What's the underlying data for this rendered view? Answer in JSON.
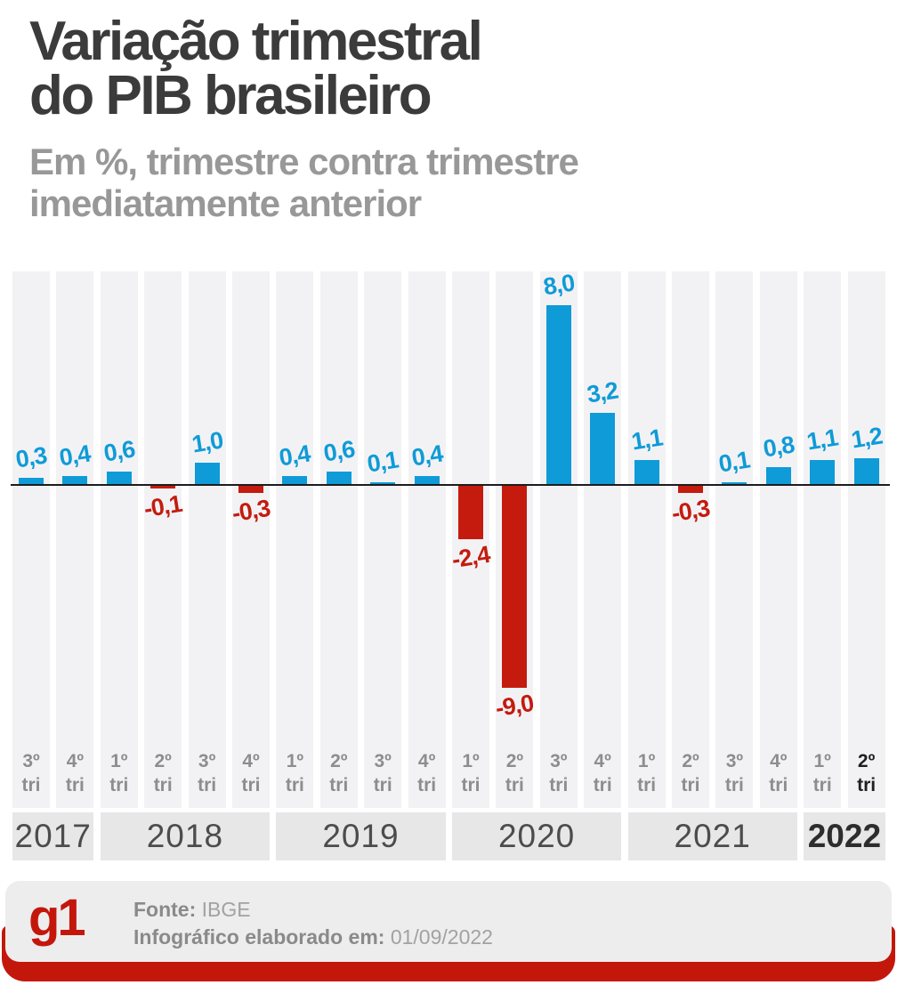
{
  "title": "Variação trimestral\ndo PIB brasileiro",
  "subtitle": "Em %, trimestre contra trimestre\nimediatamente anterior",
  "footer": {
    "logo": "g1",
    "source_label": "Fonte:",
    "source_value": "IBGE",
    "date_label": "Infográfico elaborado em:",
    "date_value": "01/09/2022"
  },
  "colors": {
    "positive_bar": "#0f9bd7",
    "negative_bar": "#c41b0e",
    "title_text": "#3b3b3b",
    "subtitle_text": "#989898",
    "stripe_bg": "#f2f2f5",
    "year_band_bg": "#e7e7e8",
    "quarter_label": "#8d8d8d",
    "current_label": "#1f1f1f",
    "footer_panel_bg": "#ededed",
    "brand_red": "#c4170c",
    "baseline": "#1c1c1c"
  },
  "chart_data": {
    "type": "bar",
    "title": "Variação trimestral do PIB brasileiro",
    "subtitle": "Em %, trimestre contra trimestre imediatamente anterior",
    "unit": "%",
    "ylim": [
      -9.0,
      8.0
    ],
    "grid": false,
    "bars": [
      {
        "quarter": "3º tri",
        "year": "2017",
        "value": 0.3,
        "display": "0,3"
      },
      {
        "quarter": "4º tri",
        "year": "2017",
        "value": 0.4,
        "display": "0,4"
      },
      {
        "quarter": "1º tri",
        "year": "2018",
        "value": 0.6,
        "display": "0,6"
      },
      {
        "quarter": "2º tri",
        "year": "2018",
        "value": -0.1,
        "display": "-0,1"
      },
      {
        "quarter": "3º tri",
        "year": "2018",
        "value": 1.0,
        "display": "1,0"
      },
      {
        "quarter": "4º tri",
        "year": "2018",
        "value": -0.3,
        "display": "-0,3"
      },
      {
        "quarter": "1º tri",
        "year": "2019",
        "value": 0.4,
        "display": "0,4"
      },
      {
        "quarter": "2º tri",
        "year": "2019",
        "value": 0.6,
        "display": "0,6"
      },
      {
        "quarter": "3º tri",
        "year": "2019",
        "value": 0.1,
        "display": "0,1"
      },
      {
        "quarter": "4º tri",
        "year": "2019",
        "value": 0.4,
        "display": "0,4"
      },
      {
        "quarter": "1º tri",
        "year": "2020",
        "value": -2.4,
        "display": "-2,4"
      },
      {
        "quarter": "2º tri",
        "year": "2020",
        "value": -9.0,
        "display": "-9,0"
      },
      {
        "quarter": "3º tri",
        "year": "2020",
        "value": 8.0,
        "display": "8,0"
      },
      {
        "quarter": "4º tri",
        "year": "2020",
        "value": 3.2,
        "display": "3,2"
      },
      {
        "quarter": "1º tri",
        "year": "2021",
        "value": 1.1,
        "display": "1,1"
      },
      {
        "quarter": "2º tri",
        "year": "2021",
        "value": -0.3,
        "display": "-0,3"
      },
      {
        "quarter": "3º tri",
        "year": "2021",
        "value": 0.1,
        "display": "0,1"
      },
      {
        "quarter": "4º tri",
        "year": "2021",
        "value": 0.8,
        "display": "0,8"
      },
      {
        "quarter": "1º tri",
        "year": "2022",
        "value": 1.1,
        "display": "1,1"
      },
      {
        "quarter": "2º tri",
        "year": "2022",
        "value": 1.2,
        "display": "1,2",
        "current": true
      }
    ],
    "year_groups": [
      {
        "year": "2017",
        "span": 2
      },
      {
        "year": "2018",
        "span": 4
      },
      {
        "year": "2019",
        "span": 4
      },
      {
        "year": "2020",
        "span": 4
      },
      {
        "year": "2021",
        "span": 4
      },
      {
        "year": "2022",
        "span": 2,
        "current": true
      }
    ]
  }
}
